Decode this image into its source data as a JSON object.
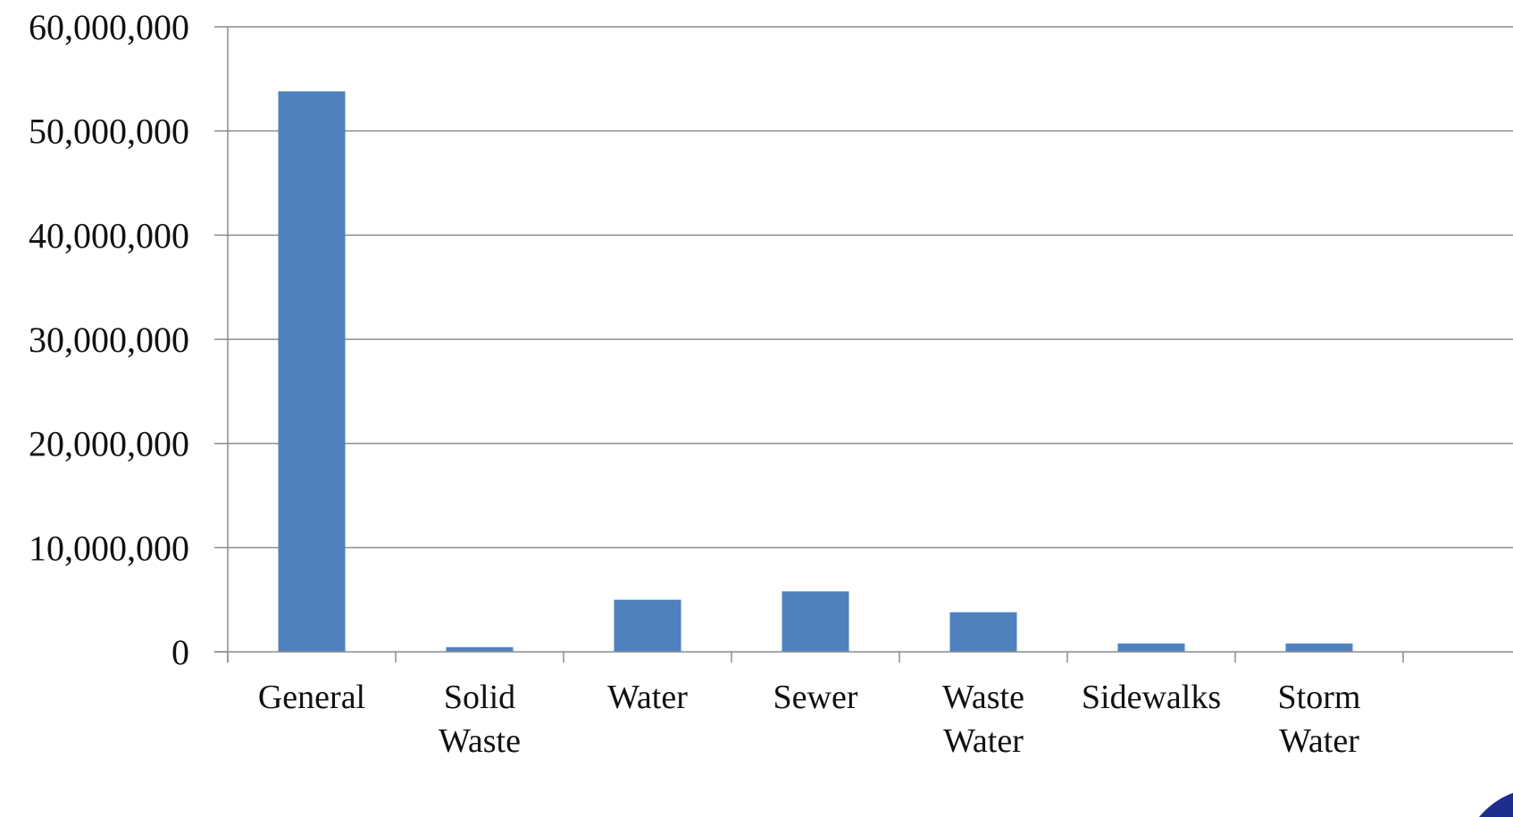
{
  "chart_data": {
    "type": "bar",
    "title": "",
    "xlabel": "",
    "ylabel": "",
    "categories": [
      [
        "General"
      ],
      [
        "Solid",
        "Waste"
      ],
      [
        "Water"
      ],
      [
        "Sewer"
      ],
      [
        "Waste",
        "Water"
      ],
      [
        "Sidewalks"
      ],
      [
        "Storm",
        "Water"
      ]
    ],
    "values": [
      53800000,
      450000,
      5000000,
      5800000,
      3800000,
      800000,
      800000
    ],
    "ylim": [
      0,
      60000000
    ],
    "yticks": [
      0,
      10000000,
      20000000,
      30000000,
      40000000,
      50000000,
      60000000
    ],
    "ytick_labels": [
      "0",
      "10,000,000",
      "20,000,000",
      "30,000,000",
      "40,000,000",
      "50,000,000",
      "60,000,000"
    ],
    "grid": true,
    "legend": "none",
    "colors": {
      "bar": "#4F81BD",
      "grid": "#8C8C8C",
      "axis": "#8C8C8C",
      "text": "#111111",
      "corner_mark": "#1F2D8C"
    }
  }
}
